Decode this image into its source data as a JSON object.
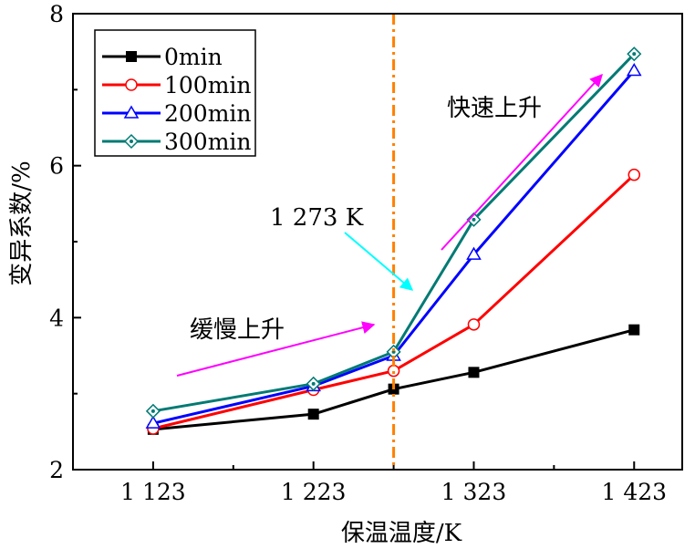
{
  "chart_data": {
    "type": "line",
    "title": "",
    "xlabel": "保温温度/K",
    "ylabel": "变异系数/%",
    "x": [
      1123,
      1223,
      1323,
      1423
    ],
    "x_tick_labels": [
      "1 123",
      "1 223",
      "1 323",
      "1 423"
    ],
    "xlim": [
      1073,
      1453
    ],
    "ylim": [
      2,
      8
    ],
    "y_ticks": [
      2,
      4,
      6,
      8
    ],
    "y_tick_labels": [
      "2",
      "4",
      "6",
      "8"
    ],
    "grid": false,
    "legend_position": "top-left",
    "series": [
      {
        "name": "0min",
        "color": "#000000",
        "marker": "filled-square",
        "points": [
          [
            1123,
            2.53
          ],
          [
            1223,
            2.73
          ],
          [
            1273,
            3.06
          ],
          [
            1323,
            3.28
          ],
          [
            1423,
            3.84
          ]
        ]
      },
      {
        "name": "100min",
        "color": "#ff0000",
        "marker": "open-circle",
        "points": [
          [
            1123,
            2.54
          ],
          [
            1223,
            3.05
          ],
          [
            1273,
            3.3
          ],
          [
            1323,
            3.91
          ],
          [
            1423,
            5.88
          ]
        ]
      },
      {
        "name": "200min",
        "color": "#0000ff",
        "marker": "open-triangle",
        "points": [
          [
            1123,
            2.61
          ],
          [
            1223,
            3.1
          ],
          [
            1273,
            3.5
          ],
          [
            1323,
            4.83
          ],
          [
            1423,
            7.25
          ]
        ]
      },
      {
        "name": "300min",
        "color": "#007a74",
        "marker": "open-diamond",
        "points": [
          [
            1123,
            2.77
          ],
          [
            1223,
            3.13
          ],
          [
            1273,
            3.55
          ],
          [
            1323,
            5.29
          ],
          [
            1423,
            7.47
          ]
        ]
      }
    ],
    "reference_line": {
      "x": 1273,
      "color": "#ff8000",
      "style": "dash-dot"
    },
    "annotations": [
      {
        "text": "1 273 K",
        "arrow_color": "#00ffff"
      },
      {
        "text": "缓慢上升",
        "arrow_color": "#ff00ff"
      },
      {
        "text": "快速上升",
        "arrow_color": "#ff00ff"
      }
    ]
  }
}
